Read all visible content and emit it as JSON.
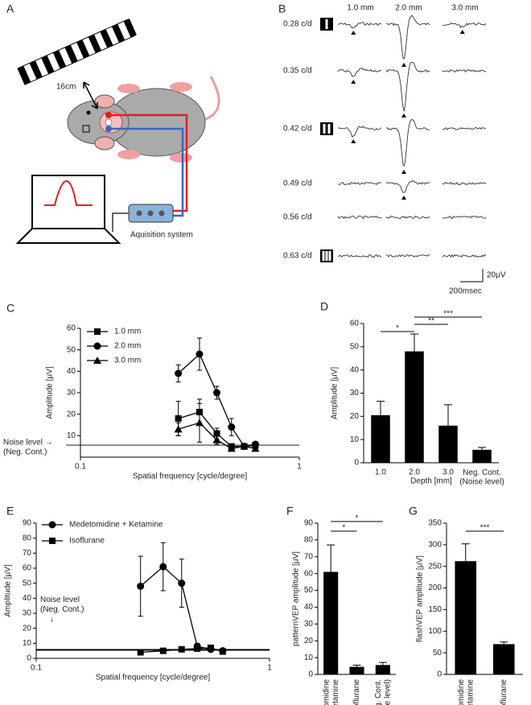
{
  "panel_a": {
    "label": "A",
    "distance": "16cm",
    "device": "Aquisition system"
  },
  "panel_b": {
    "label": "B",
    "columns": [
      "1.0 mm",
      "2.0 mm",
      "3.0 mm"
    ],
    "rows": [
      "0.28 c/d",
      "0.35 c/d",
      "0.42 c/d",
      "0.49 c/d",
      "0.56 c/d",
      "0.63 c/d"
    ],
    "scale_y": "20μV",
    "scale_x": "200msec"
  },
  "chart_data": [
    {
      "panel": "C",
      "type": "line",
      "xscale": "log",
      "xlabel": "Spatial frequency [cycle/degree]",
      "ylabel": "Amplitude [μV]",
      "x": [
        0.28,
        0.35,
        0.42,
        0.49,
        0.56,
        0.63
      ],
      "xlim": [
        0.1,
        1
      ],
      "xticks": [
        0.1,
        1
      ],
      "ylim": [
        0,
        60
      ],
      "yticks": [
        10,
        20,
        30,
        40,
        50,
        60
      ],
      "legend": "upper left",
      "reference_value": 5.6,
      "reference_label": [
        "Noise level →",
        "(Neg. Cont.)"
      ],
      "series": [
        {
          "name": "1.0 mm",
          "color": "#000000",
          "marker": "square",
          "values": [
            18,
            21,
            11,
            5,
            5,
            5.5
          ],
          "errors": [
            8,
            6,
            2.5,
            1,
            1,
            1
          ]
        },
        {
          "name": "2.0 mm",
          "color": "#000000",
          "marker": "circle",
          "values": [
            39,
            48,
            30,
            14,
            5,
            6
          ],
          "errors": [
            4,
            7.5,
            3,
            4,
            1,
            1
          ]
        },
        {
          "name": "3.0 mm",
          "color": "#000000",
          "marker": "triangle",
          "values": [
            13,
            16,
            8,
            4,
            5,
            4
          ],
          "errors": [
            3,
            9,
            2,
            1,
            1,
            1
          ]
        }
      ]
    },
    {
      "panel": "D",
      "type": "bar",
      "xlabel": "Depth [mm]",
      "ylabel": "Amplitude [μV]",
      "color": "#000000",
      "categories": [
        "1.0",
        "2.0",
        "3.0",
        "Neg. Cont.\n(Noise level)"
      ],
      "values": [
        20.5,
        48,
        16,
        5.6
      ],
      "errors": [
        6,
        7.5,
        9,
        1
      ],
      "ylim": [
        0,
        60
      ],
      "yticks": [
        0,
        10,
        20,
        30,
        40,
        50,
        60
      ],
      "significance": [
        {
          "label": "*",
          "categories": [
            0,
            1
          ]
        },
        {
          "label": "**",
          "categories": [
            1,
            2
          ]
        },
        {
          "label": "***",
          "categories": [
            1,
            3
          ]
        }
      ]
    },
    {
      "panel": "E",
      "type": "line",
      "xscale": "log",
      "xlabel": "Spatial frequency [cycle/degree]",
      "ylabel": "Amplitude [μV]",
      "x": [
        0.28,
        0.35,
        0.42,
        0.49,
        0.56,
        0.63
      ],
      "xlim": [
        0.1,
        1
      ],
      "xticks": [
        0.1,
        1
      ],
      "ylim": [
        0,
        90
      ],
      "yticks": [
        0,
        10,
        20,
        30,
        40,
        50,
        60,
        70,
        80,
        90
      ],
      "legend": "upper left",
      "reference_value": 5.6,
      "reference_label": [
        "Noise level",
        "(Neg. Cont.)",
        "↓"
      ],
      "series": [
        {
          "name": "Medetomidine + Ketamine",
          "color": "#000000",
          "marker": "circle",
          "values": [
            48,
            61,
            50,
            8,
            6,
            5
          ],
          "errors": [
            20,
            16,
            16,
            2,
            1,
            1
          ]
        },
        {
          "name": "Isoflurane",
          "color": "#000000",
          "marker": "square",
          "values": [
            4,
            5,
            6,
            6.5,
            7,
            4.5
          ],
          "errors": [
            1,
            1,
            1,
            1,
            1,
            1
          ]
        }
      ]
    },
    {
      "panel": "F",
      "type": "bar",
      "ylabel": "patternVEP amplitude [μV]",
      "color": "#000000",
      "categories": [
        "Medetomidine\n+ Ketamine",
        "Isoflurane",
        "Neg. Cont.\n(Noise level)"
      ],
      "values": [
        61,
        4.5,
        5.6
      ],
      "errors": [
        16,
        1,
        1.5
      ],
      "ylim": [
        0,
        90
      ],
      "yticks": [
        0,
        10,
        20,
        30,
        40,
        50,
        60,
        70,
        80,
        90
      ],
      "significance": [
        {
          "label": "*",
          "categories": [
            0,
            1
          ]
        },
        {
          "label": "*",
          "categories": [
            0,
            2
          ]
        }
      ]
    },
    {
      "panel": "G",
      "type": "bar",
      "ylabel": "flashVEP amplitude [μV]",
      "color": "#000000",
      "categories": [
        "Medetomidine\n+ Ketamine",
        "Isoflurane"
      ],
      "values": [
        262,
        70
      ],
      "errors": [
        40,
        5
      ],
      "ylim": [
        0,
        350
      ],
      "yticks": [
        0,
        50,
        100,
        150,
        200,
        250,
        300,
        350
      ],
      "significance": [
        {
          "label": "***",
          "categories": [
            0,
            1
          ]
        }
      ]
    }
  ]
}
